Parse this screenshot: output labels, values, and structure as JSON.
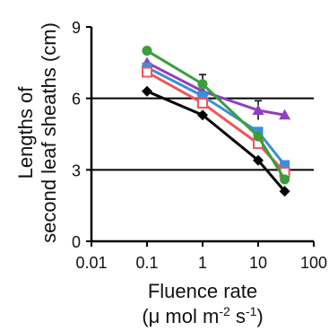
{
  "chart_data": {
    "type": "line",
    "xlabel": "Fluence rate",
    "xunit": "(μ mol m-2 s-1)",
    "ylabel_line1": "Lengths of",
    "ylabel_line2": "second leaf sheaths (cm)",
    "xscale": "log",
    "xlim": [
      0.01,
      100
    ],
    "ylim": [
      0,
      9
    ],
    "x_ticks": [
      0.01,
      0.1,
      1,
      10,
      100
    ],
    "x_tick_labels": [
      "0.01",
      "0.1",
      "1",
      "10",
      "100"
    ],
    "y_ticks": [
      0,
      3,
      6,
      9
    ],
    "y_tick_labels": [
      "0",
      "3",
      "6",
      "9"
    ],
    "reference_lines": [
      3,
      6
    ],
    "x": [
      0.1,
      1,
      10,
      30
    ],
    "series": [
      {
        "color": "#8e3fbf",
        "marker": "triangle",
        "values": [
          7.5,
          6.3,
          5.5,
          5.3
        ]
      },
      {
        "color": "#3a8fd9",
        "marker": "square",
        "values": [
          7.3,
          6.1,
          4.6,
          3.2
        ]
      },
      {
        "color": "#f0555a",
        "marker": "open-square",
        "values": [
          7.1,
          5.8,
          4.1,
          2.9
        ]
      },
      {
        "color": "#3a9e3a",
        "marker": "circle",
        "values": [
          8.0,
          6.6,
          4.4,
          2.6
        ]
      },
      {
        "color": "#000000",
        "marker": "diamond",
        "values": [
          6.3,
          5.3,
          3.4,
          2.1
        ]
      }
    ],
    "error_bars": [
      {
        "series": 3,
        "x": 1,
        "value": 6.6,
        "err": 0.4
      },
      {
        "series": 0,
        "x": 10,
        "value": 5.5,
        "err": 0.4
      }
    ]
  }
}
